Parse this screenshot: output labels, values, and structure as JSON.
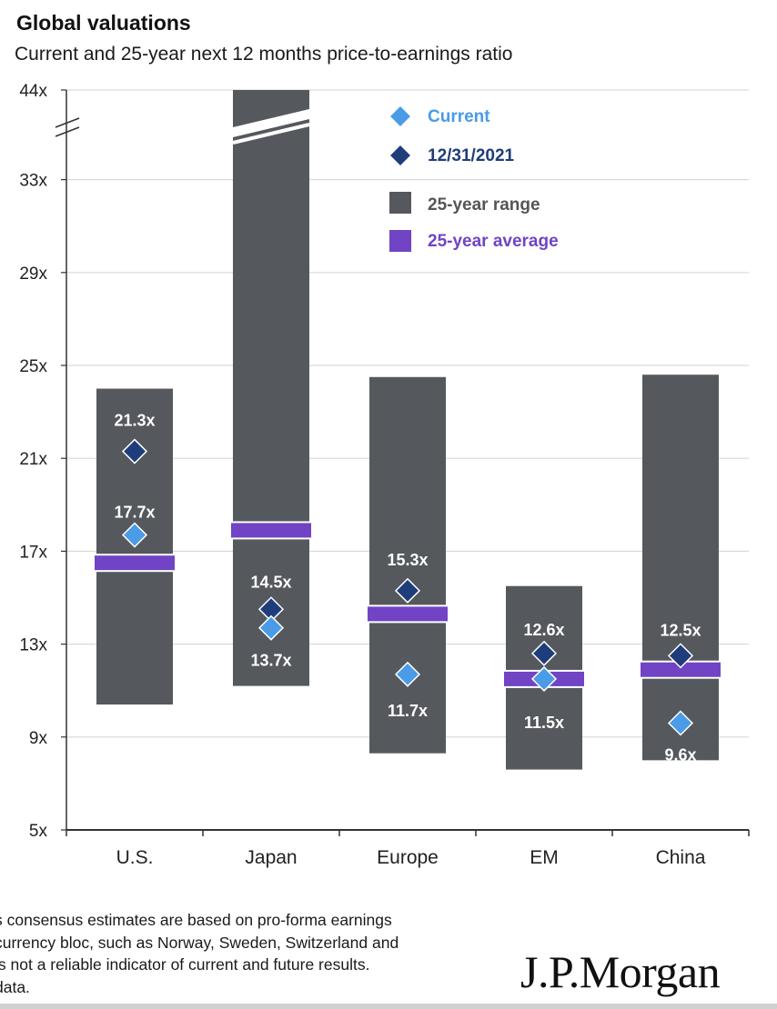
{
  "header": {
    "title": "Global valuations",
    "subtitle": "Current and 25-year next 12 months price-to-earnings ratio"
  },
  "chart_data": {
    "type": "range-bar",
    "categories": [
      "U.S.",
      "Japan",
      "Europe",
      "EM",
      "China"
    ],
    "y_ticks": [
      "5x",
      "9x",
      "13x",
      "17x",
      "21x",
      "25x",
      "29x",
      "33x",
      "44x"
    ],
    "y_tick_values": [
      5,
      9,
      13,
      17,
      21,
      25,
      29,
      33,
      44
    ],
    "axis_break": "between 33x and 44x",
    "grid": true,
    "legend_position": "top-right",
    "series": [
      {
        "name": "Current",
        "color": "#4a9be8",
        "marker": "diamond",
        "values": [
          17.7,
          13.7,
          11.7,
          11.5,
          9.6
        ],
        "labels": [
          "17.7x",
          "13.7x",
          "11.7x",
          "11.5x",
          "9.6x"
        ]
      },
      {
        "name": "12/31/2021",
        "color": "#1f3d7a",
        "marker": "diamond",
        "values": [
          21.3,
          14.5,
          15.3,
          12.6,
          12.5
        ],
        "labels": [
          "21.3x",
          "14.5x",
          "15.3x",
          "12.6x",
          "12.5x"
        ]
      },
      {
        "name": "25-year range",
        "color": "#55585d",
        "low": [
          10.4,
          11.2,
          8.3,
          7.6,
          8.0
        ],
        "high": [
          24.0,
          44.0,
          24.5,
          15.5,
          24.6
        ]
      },
      {
        "name": "25-year average",
        "color": "#7044c4",
        "values": [
          16.5,
          17.9,
          14.3,
          11.5,
          11.9
        ]
      }
    ]
  },
  "footnote": {
    "lines": [
      "s consensus estimates are based on pro-forma earnings",
      "currency bloc, such as Norway, Sweden, Switzerland and",
      "is not a reliable indicator of current and future results.",
      " data."
    ]
  },
  "logo": "J.P.Morgan"
}
